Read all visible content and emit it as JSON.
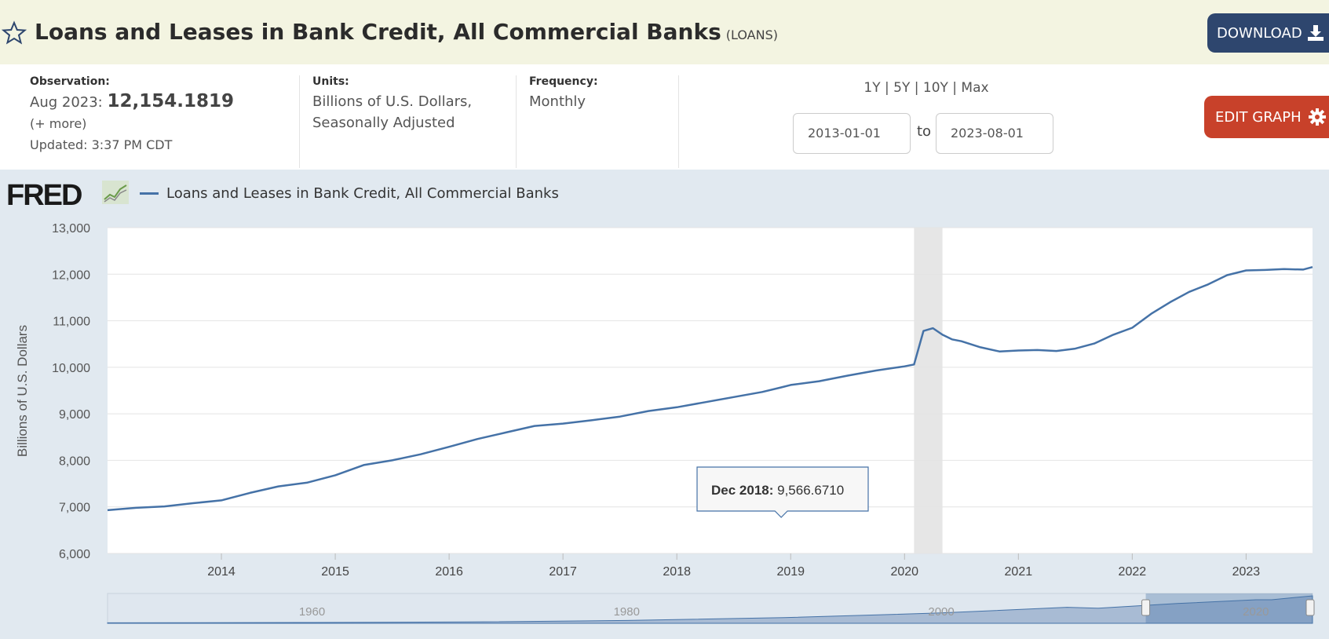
{
  "header": {
    "title": "Loans and Leases in Bank Credit, All Commercial Banks",
    "series_id": "(LOANS)",
    "download_label": "DOWNLOAD"
  },
  "meta": {
    "observation_label": "Observation:",
    "observation_date": "Aug 2023:",
    "observation_value": "12,154.1819",
    "more": "(+ more)",
    "updated": "Updated: 3:37 PM CDT",
    "units_label": "Units:",
    "units_line1": "Billions of U.S. Dollars,",
    "units_line2": "Seasonally Adjusted",
    "frequency_label": "Frequency:",
    "frequency_value": "Monthly",
    "ranges": "1Y | 5Y | 10Y | Max",
    "start_date": "2013-01-01",
    "to": "to",
    "end_date": "2023-08-01",
    "edit_label": "EDIT GRAPH"
  },
  "chart": {
    "logo": "FRED",
    "legend": "Loans and Leases in Bank Credit, All Commercial Banks",
    "tooltip_date": "Dec 2018:",
    "tooltip_value": "9,566.6710",
    "navigator_labels": [
      "1960",
      "1980",
      "2000",
      "2020"
    ]
  },
  "colors": {
    "line": "#4572a7",
    "recession": "#e6e6e6",
    "background": "#e1e9f0"
  },
  "chart_data": {
    "type": "line",
    "title": "",
    "ylabel": "Billions of U.S. Dollars",
    "ylim": [
      6000,
      13000
    ],
    "yticks": [
      "6,000",
      "7,000",
      "8,000",
      "9,000",
      "10,000",
      "11,000",
      "12,000",
      "13,000"
    ],
    "xticks": [
      "2014",
      "2015",
      "2016",
      "2017",
      "2018",
      "2019",
      "2020",
      "2021",
      "2022",
      "2023"
    ],
    "recession": [
      "2020-02",
      "2020-04"
    ],
    "series": [
      {
        "name": "Loans and Leases in Bank Credit, All Commercial Banks",
        "x": [
          "2013-01",
          "2013-04",
          "2013-07",
          "2013-10",
          "2014-01",
          "2014-04",
          "2014-07",
          "2014-10",
          "2015-01",
          "2015-04",
          "2015-07",
          "2015-10",
          "2016-01",
          "2016-04",
          "2016-07",
          "2016-10",
          "2017-01",
          "2017-04",
          "2017-07",
          "2017-10",
          "2018-01",
          "2018-04",
          "2018-07",
          "2018-10",
          "2018-12",
          "2019-01",
          "2019-04",
          "2019-07",
          "2019-10",
          "2020-01",
          "2020-02",
          "2020-03",
          "2020-04",
          "2020-05",
          "2020-06",
          "2020-07",
          "2020-09",
          "2020-11",
          "2021-01",
          "2021-03",
          "2021-05",
          "2021-07",
          "2021-09",
          "2021-11",
          "2022-01",
          "2022-03",
          "2022-05",
          "2022-07",
          "2022-09",
          "2022-11",
          "2023-01",
          "2023-03",
          "2023-05",
          "2023-07",
          "2023-08"
        ],
        "values": [
          6930,
          6980,
          7010,
          7080,
          7140,
          7300,
          7440,
          7520,
          7680,
          7900,
          8000,
          8130,
          8290,
          8460,
          8600,
          8740,
          8790,
          8860,
          8940,
          9060,
          9140,
          9250,
          9360,
          9470,
          9567,
          9620,
          9700,
          9820,
          9930,
          10020,
          10060,
          10780,
          10840,
          10700,
          10600,
          10560,
          10430,
          10340,
          10360,
          10370,
          10350,
          10400,
          10510,
          10700,
          10850,
          11150,
          11400,
          11620,
          11780,
          11980,
          12080,
          12090,
          12110,
          12100,
          12154
        ]
      }
    ]
  }
}
